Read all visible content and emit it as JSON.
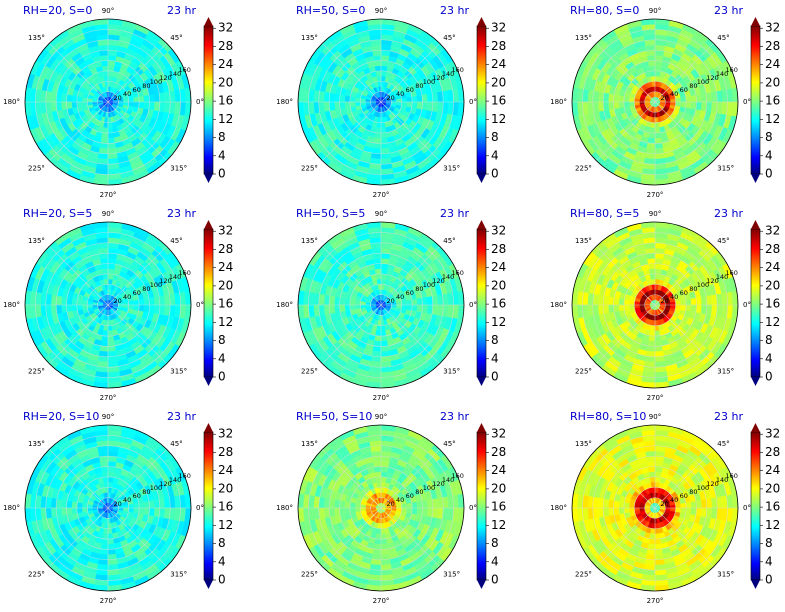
{
  "figure": {
    "time_label": "23 hr",
    "angle_ticks": [
      "90°",
      "45°",
      "0°",
      "315°",
      "270°",
      "225°",
      "180°",
      "135°"
    ],
    "radial_ticks": [
      "20",
      "40",
      "60",
      "80",
      "100",
      "120",
      "140",
      "160"
    ],
    "colorbar_ticks": [
      "0",
      "4",
      "8",
      "12",
      "16",
      "20",
      "24",
      "28",
      "32"
    ]
  },
  "chart_data": [
    {
      "type": "heatmap",
      "projection": "polar",
      "title": "RH=20, S=0",
      "rh": 20,
      "s": 0,
      "time": "23 hr",
      "rlim": [
        0,
        160
      ],
      "clim": [
        0,
        32
      ],
      "colormap": "jet",
      "center_value": 5,
      "ring_value": null,
      "ring_radius": null,
      "outer_value": 13
    },
    {
      "type": "heatmap",
      "projection": "polar",
      "title": "RH=50, S=0",
      "rh": 50,
      "s": 0,
      "time": "23 hr",
      "rlim": [
        0,
        160
      ],
      "clim": [
        0,
        32
      ],
      "colormap": "jet",
      "center_value": 4,
      "ring_value": null,
      "ring_radius": null,
      "outer_value": 13
    },
    {
      "type": "heatmap",
      "projection": "polar",
      "title": "RH=80, S=0",
      "rh": 80,
      "s": 0,
      "time": "23 hr",
      "rlim": [
        0,
        160
      ],
      "clim": [
        0,
        32
      ],
      "colormap": "jet",
      "center_value": 12,
      "ring_value": 30,
      "ring_radius": 25,
      "outer_value": 16
    },
    {
      "type": "heatmap",
      "projection": "polar",
      "title": "RH=20, S=5",
      "rh": 20,
      "s": 5,
      "time": "23 hr",
      "rlim": [
        0,
        160
      ],
      "clim": [
        0,
        32
      ],
      "colormap": "jet",
      "center_value": 6,
      "ring_value": null,
      "ring_radius": null,
      "outer_value": 13
    },
    {
      "type": "heatmap",
      "projection": "polar",
      "title": "RH=50, S=5",
      "rh": 50,
      "s": 5,
      "time": "23 hr",
      "rlim": [
        0,
        160
      ],
      "clim": [
        0,
        32
      ],
      "colormap": "jet",
      "center_value": 5,
      "ring_value": null,
      "ring_radius": null,
      "outer_value": 14
    },
    {
      "type": "heatmap",
      "projection": "polar",
      "title": "RH=80, S=5",
      "rh": 80,
      "s": 5,
      "time": "23 hr",
      "rlim": [
        0,
        160
      ],
      "clim": [
        0,
        32
      ],
      "colormap": "jet",
      "center_value": 13,
      "ring_value": 32,
      "ring_radius": 25,
      "outer_value": 18
    },
    {
      "type": "heatmap",
      "projection": "polar",
      "title": "RH=20, S=10",
      "rh": 20,
      "s": 10,
      "time": "23 hr",
      "rlim": [
        0,
        160
      ],
      "clim": [
        0,
        32
      ],
      "colormap": "jet",
      "center_value": 6,
      "ring_value": null,
      "ring_radius": null,
      "outer_value": 13
    },
    {
      "type": "heatmap",
      "projection": "polar",
      "title": "RH=50, S=10",
      "rh": 50,
      "s": 10,
      "time": "23 hr",
      "rlim": [
        0,
        160
      ],
      "clim": [
        0,
        32
      ],
      "colormap": "jet",
      "center_value": 14,
      "ring_value": 24,
      "ring_radius": 20,
      "outer_value": 16
    },
    {
      "type": "heatmap",
      "projection": "polar",
      "title": "RH=80, S=10",
      "rh": 80,
      "s": 10,
      "time": "23 hr",
      "rlim": [
        0,
        160
      ],
      "clim": [
        0,
        32
      ],
      "colormap": "jet",
      "center_value": 12,
      "ring_value": 30,
      "ring_radius": 28,
      "outer_value": 19
    }
  ]
}
